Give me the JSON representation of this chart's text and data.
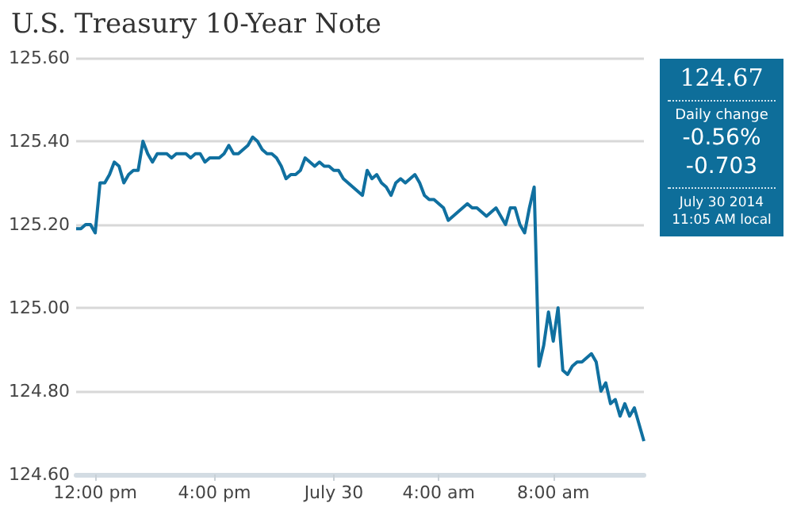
{
  "chart_data": {
    "type": "line",
    "title": "U.S. Treasury 10-Year Note",
    "categories": [
      null,
      null,
      null,
      null,
      "12:00 pm",
      null,
      null,
      null,
      null,
      null,
      null,
      null,
      null,
      null,
      null,
      null,
      null,
      null,
      null,
      null,
      null,
      null,
      null,
      null,
      null,
      null,
      null,
      null,
      null,
      "4:00 pm",
      null,
      null,
      null,
      null,
      null,
      null,
      null,
      null,
      null,
      null,
      null,
      null,
      null,
      null,
      null,
      null,
      null,
      null,
      null,
      null,
      null,
      null,
      null,
      null,
      "July 30",
      null,
      null,
      null,
      null,
      null,
      null,
      null,
      null,
      null,
      null,
      null,
      null,
      null,
      null,
      null,
      null,
      null,
      null,
      null,
      null,
      null,
      "4:00 am",
      null,
      null,
      null,
      null,
      null,
      null,
      null,
      null,
      null,
      null,
      null,
      null,
      null,
      null,
      null,
      null,
      null,
      null,
      null,
      null,
      null,
      null,
      null,
      "8:00 am",
      null,
      null,
      null,
      null,
      null,
      null,
      null,
      null,
      null,
      null,
      null,
      null,
      null,
      null,
      null,
      null,
      null,
      null,
      null
    ],
    "values": [
      125.19,
      125.19,
      125.2,
      125.2,
      125.18,
      125.3,
      125.3,
      125.32,
      125.35,
      125.34,
      125.3,
      125.32,
      125.33,
      125.33,
      125.4,
      125.37,
      125.35,
      125.37,
      125.37,
      125.37,
      125.36,
      125.37,
      125.37,
      125.37,
      125.36,
      125.37,
      125.37,
      125.35,
      125.36,
      125.36,
      125.36,
      125.37,
      125.39,
      125.37,
      125.37,
      125.38,
      125.39,
      125.41,
      125.4,
      125.38,
      125.37,
      125.37,
      125.36,
      125.34,
      125.31,
      125.32,
      125.32,
      125.33,
      125.36,
      125.35,
      125.34,
      125.35,
      125.34,
      125.34,
      125.33,
      125.33,
      125.31,
      125.3,
      125.29,
      125.28,
      125.27,
      125.33,
      125.31,
      125.32,
      125.3,
      125.29,
      125.27,
      125.3,
      125.31,
      125.3,
      125.31,
      125.32,
      125.3,
      125.27,
      125.26,
      125.26,
      125.25,
      125.24,
      125.21,
      125.22,
      125.23,
      125.24,
      125.25,
      125.24,
      125.24,
      125.23,
      125.22,
      125.23,
      125.24,
      125.22,
      125.2,
      125.24,
      125.24,
      125.2,
      125.18,
      125.24,
      125.29,
      124.86,
      124.91,
      124.99,
      124.92,
      125.0,
      124.85,
      124.84,
      124.86,
      124.87,
      124.87,
      124.88,
      124.89,
      124.87,
      124.8,
      124.82,
      124.77,
      124.78,
      124.74,
      124.77,
      124.74,
      124.76,
      124.72,
      124.68
    ],
    "color": "#1070a0",
    "ylim": [
      124.6,
      125.6
    ],
    "yticks": [
      {
        "value": 124.6,
        "label": "124.60"
      },
      {
        "value": 124.8,
        "label": "124.80"
      },
      {
        "value": 125.0,
        "label": "125.00"
      },
      {
        "value": 125.2,
        "label": "125.20"
      },
      {
        "value": 125.4,
        "label": "125.40"
      },
      {
        "value": 125.6,
        "label": "125.60"
      }
    ],
    "grid": "y",
    "marker": "none",
    "line_style": "solid",
    "annotations": [
      "124.67",
      "Daily change",
      "-0.56%",
      "-0.703",
      "July 30 2014",
      "11:05 AM local"
    ]
  }
}
